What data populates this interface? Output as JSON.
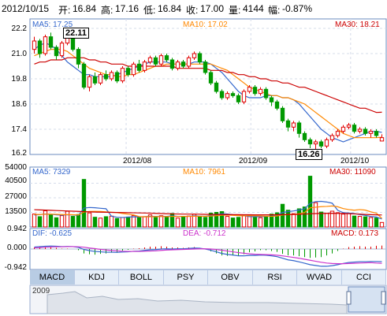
{
  "header": {
    "date": "2012/10/15",
    "open_label": "开:",
    "open": "16.84",
    "high_label": "高:",
    "high": "17.16",
    "low_label": "低:",
    "low": "16.84",
    "close_label": "收:",
    "close": "17.00",
    "volume_label": "量:",
    "volume": "4144",
    "change_label": "幅:",
    "change": "-0.87%"
  },
  "price_panel": {
    "ma5_label": "MA5: 17.25",
    "ma10_label": "MA10: 17.02",
    "ma30_label": "MA30: 18.21",
    "high_callout": "22.11",
    "low_callout": "16.26",
    "y_ticks": [
      "22.2",
      "21.0",
      "19.8",
      "18.6",
      "17.4",
      "16.2"
    ],
    "x_ticks": [
      "2012/08",
      "2012/09",
      "2012/10"
    ]
  },
  "volume_panel": {
    "ma5_label": "MA5: 7329",
    "ma10_label": "MA10: 7961",
    "ma30_label": "MA30: 11090",
    "y_ticks": [
      "54000",
      "40500",
      "27000",
      "13500"
    ]
  },
  "macd_panel": {
    "dif_label": "DIF: -0.625",
    "dea_label": "DEA: -0.712",
    "macd_label": "MACD: 0.173",
    "y_ticks": [
      "0.942",
      "0.000",
      "-0.942"
    ]
  },
  "tabs": [
    "MACD",
    "KDJ",
    "BOLL",
    "PSY",
    "OBV",
    "RSI",
    "WVAD",
    "CCI"
  ],
  "overview": {
    "year_label": "2009"
  },
  "colors": {
    "up": "#e00000",
    "down": "#009900",
    "ma5": "#3366cc",
    "ma10": "#ff8800",
    "ma30": "#cc0000",
    "dif": "#3366cc",
    "dea": "#cc33cc"
  },
  "chart_data": [
    {
      "type": "candlestick",
      "title": "",
      "xlabel": "",
      "ylabel": "",
      "ylim": [
        16.2,
        22.2
      ],
      "x_ticks": [
        "2012/08",
        "2012/09",
        "2012/10"
      ],
      "series": [
        {
          "name": "MA5",
          "values": [
            21.2,
            21.4,
            21.5,
            21.4,
            21.2,
            20.9,
            20.6,
            20.4,
            20.2,
            20.0,
            20.0,
            19.9,
            19.9,
            19.9,
            19.9,
            20.0,
            20.1,
            20.2,
            20.3,
            20.4,
            20.5,
            20.6,
            20.6,
            20.6,
            20.6,
            20.5,
            20.5,
            20.5,
            20.5,
            20.6,
            20.6,
            20.6,
            20.5,
            20.3,
            20.1,
            19.8,
            19.5,
            19.2,
            19.0,
            18.9,
            18.9,
            18.9,
            19.0,
            19.0,
            19.0,
            18.9,
            18.9,
            18.8,
            18.6,
            18.3,
            18.0,
            17.7,
            17.4,
            17.2,
            17.0,
            16.9,
            16.8,
            16.9,
            17.0,
            17.1,
            17.2,
            17.3,
            17.3,
            17.25
          ]
        },
        {
          "name": "MA10",
          "values": [
            20.9,
            21.0,
            21.1,
            21.2,
            21.2,
            21.2,
            21.1,
            20.9,
            20.7,
            20.5,
            20.3,
            20.2,
            20.1,
            20.0,
            20.0,
            19.9,
            19.9,
            20.0,
            20.0,
            20.1,
            20.2,
            20.3,
            20.4,
            20.4,
            20.5,
            20.5,
            20.5,
            20.5,
            20.5,
            20.5,
            20.5,
            20.5,
            20.5,
            20.4,
            20.3,
            20.2,
            20.0,
            19.8,
            19.6,
            19.4,
            19.3,
            19.2,
            19.1,
            19.0,
            19.0,
            18.9,
            18.9,
            18.8,
            18.7,
            18.6,
            18.4,
            18.2,
            18.0,
            17.8,
            17.6,
            17.4,
            17.2,
            17.1,
            17.0,
            17.0,
            17.0,
            17.0,
            17.0,
            17.02
          ]
        },
        {
          "name": "MA30",
          "values": [
            20.5,
            20.6,
            20.6,
            20.7,
            20.7,
            20.7,
            20.8,
            20.8,
            20.8,
            20.8,
            20.7,
            20.7,
            20.6,
            20.6,
            20.5,
            20.5,
            20.5,
            20.4,
            20.4,
            20.4,
            20.4,
            20.4,
            20.4,
            20.4,
            20.4,
            20.4,
            20.3,
            20.3,
            20.3,
            20.3,
            20.3,
            20.3,
            20.2,
            20.2,
            20.2,
            20.1,
            20.1,
            20.0,
            20.0,
            19.9,
            19.9,
            19.8,
            19.8,
            19.7,
            19.7,
            19.6,
            19.6,
            19.5,
            19.4,
            19.4,
            19.3,
            19.2,
            19.1,
            19.0,
            18.9,
            18.8,
            18.7,
            18.6,
            18.5,
            18.4,
            18.4,
            18.3,
            18.2,
            18.21
          ]
        }
      ],
      "candles": [
        [
          21.2,
          21.6,
          21.8,
          21.0
        ],
        [
          21.6,
          21.0,
          21.7,
          20.8
        ],
        [
          21.0,
          21.8,
          21.9,
          20.9
        ],
        [
          21.8,
          21.3,
          22.0,
          21.2
        ],
        [
          21.3,
          20.9,
          21.4,
          20.7
        ],
        [
          20.9,
          21.5,
          21.6,
          20.8
        ],
        [
          21.5,
          22.0,
          22.11,
          21.4
        ],
        [
          22.0,
          21.2,
          22.05,
          21.1
        ],
        [
          21.2,
          20.5,
          21.3,
          20.3
        ],
        [
          20.5,
          19.4,
          20.6,
          19.3
        ],
        [
          19.4,
          19.9,
          20.0,
          19.2
        ],
        [
          19.9,
          19.6,
          20.1,
          19.5
        ],
        [
          19.6,
          20.0,
          20.1,
          19.5
        ],
        [
          20.0,
          19.8,
          20.2,
          19.7
        ],
        [
          19.8,
          20.1,
          20.2,
          19.7
        ],
        [
          20.1,
          19.7,
          20.2,
          19.6
        ],
        [
          19.7,
          20.3,
          20.4,
          19.6
        ],
        [
          20.3,
          20.0,
          20.4,
          19.9
        ],
        [
          20.0,
          20.5,
          20.6,
          19.9
        ],
        [
          20.5,
          20.2,
          20.7,
          20.1
        ],
        [
          20.2,
          20.6,
          20.7,
          20.1
        ],
        [
          20.6,
          20.8,
          20.9,
          20.5
        ],
        [
          20.8,
          20.5,
          20.9,
          20.4
        ],
        [
          20.5,
          20.9,
          21.0,
          20.4
        ],
        [
          20.9,
          20.7,
          21.0,
          20.6
        ],
        [
          20.7,
          20.3,
          20.8,
          20.2
        ],
        [
          20.3,
          20.6,
          20.7,
          20.2
        ],
        [
          20.6,
          20.4,
          20.7,
          20.3
        ],
        [
          20.4,
          20.8,
          20.9,
          20.3
        ],
        [
          20.8,
          21.0,
          21.1,
          20.7
        ],
        [
          21.0,
          20.6,
          21.1,
          20.5
        ],
        [
          20.6,
          20.1,
          20.7,
          20.0
        ],
        [
          20.1,
          19.6,
          20.2,
          19.5
        ],
        [
          19.6,
          19.2,
          19.7,
          19.1
        ],
        [
          19.2,
          18.9,
          19.3,
          18.8
        ],
        [
          18.9,
          19.1,
          19.2,
          18.8
        ],
        [
          19.1,
          19.0,
          19.2,
          18.9
        ],
        [
          19.0,
          18.7,
          19.1,
          18.6
        ],
        [
          18.7,
          19.2,
          19.3,
          18.6
        ],
        [
          19.2,
          19.4,
          19.5,
          19.1
        ],
        [
          19.4,
          19.1,
          19.5,
          19.0
        ],
        [
          19.1,
          19.3,
          19.4,
          19.0
        ],
        [
          19.3,
          18.9,
          19.4,
          18.8
        ],
        [
          18.9,
          18.7,
          19.0,
          18.5
        ],
        [
          18.7,
          18.4,
          18.8,
          18.3
        ],
        [
          18.4,
          17.8,
          18.5,
          17.7
        ],
        [
          17.8,
          17.5,
          17.9,
          17.3
        ],
        [
          17.5,
          17.7,
          17.8,
          17.3
        ],
        [
          17.7,
          17.2,
          17.8,
          17.0
        ],
        [
          17.2,
          16.9,
          17.3,
          16.8
        ],
        [
          16.9,
          16.7,
          17.0,
          16.5
        ],
        [
          16.7,
          16.8,
          16.9,
          16.26
        ],
        [
          16.8,
          16.6,
          16.9,
          16.5
        ],
        [
          16.6,
          16.9,
          17.0,
          16.5
        ],
        [
          16.9,
          17.1,
          17.2,
          16.8
        ],
        [
          17.1,
          17.3,
          17.4,
          17.0
        ],
        [
          17.3,
          17.5,
          17.6,
          17.2
        ],
        [
          17.5,
          17.6,
          17.7,
          17.4
        ],
        [
          17.6,
          17.3,
          17.7,
          17.2
        ],
        [
          17.3,
          17.4,
          17.5,
          17.2
        ],
        [
          17.4,
          17.2,
          17.5,
          17.1
        ],
        [
          17.2,
          17.3,
          17.4,
          17.0
        ],
        [
          17.3,
          17.1,
          17.4,
          17.0
        ],
        [
          16.84,
          17.0,
          17.16,
          16.84
        ]
      ]
    },
    {
      "type": "bar",
      "title": "",
      "ylim": [
        0,
        54000
      ],
      "values": [
        12000,
        9500,
        15000,
        11000,
        8500,
        10500,
        14500,
        9800,
        11500,
        44000,
        13000,
        9000,
        8200,
        9500,
        10000,
        7800,
        8800,
        9200,
        10500,
        9000,
        9600,
        11200,
        8700,
        10400,
        9100,
        12500,
        8200,
        9300,
        10100,
        11800,
        9700,
        8900,
        12800,
        13500,
        14200,
        9800,
        8300,
        8900,
        10200,
        11100,
        9300,
        8600,
        9900,
        11900,
        13100,
        21000,
        15500,
        12300,
        16800,
        18500,
        47000,
        22500,
        13800,
        12700,
        14600,
        13200,
        11900,
        12400,
        10100,
        9800,
        9400,
        8700,
        8300,
        4144
      ],
      "series": [
        {
          "name": "MA5",
          "values": [
            11000,
            11500,
            12000,
            11800,
            11200,
            10900,
            11300,
            11100,
            10800,
            17500,
            18000,
            17800,
            17300,
            16900,
            9900,
            9000,
            8700,
            9100,
            9400,
            9300,
            9500,
            9900,
            9800,
            9900,
            9800,
            10300,
            9800,
            9800,
            9800,
            10300,
            10000,
            9900,
            10700,
            11500,
            12200,
            12000,
            11300,
            10900,
            10500,
            9600,
            9600,
            9600,
            9800,
            10100,
            10900,
            13400,
            14200,
            14800,
            15700,
            16800,
            22000,
            23500,
            23700,
            23100,
            22000,
            15400,
            13200,
            12900,
            12400,
            11500,
            10700,
            9700,
            9200,
            7329
          ]
        },
        {
          "name": "MA10",
          "values": [
            11500,
            11600,
            11800,
            11900,
            11700,
            11500,
            11400,
            11300,
            11100,
            13800,
            14300,
            14400,
            14300,
            14000,
            13600,
            13300,
            12500,
            11800,
            11200,
            9600,
            9400,
            9500,
            9600,
            9700,
            9600,
            9800,
            9700,
            9800,
            9800,
            9900,
            9900,
            9900,
            10100,
            10400,
            10800,
            11000,
            10700,
            10500,
            10300,
            10500,
            10400,
            10200,
            10000,
            9800,
            10200,
            11100,
            11400,
            11700,
            12200,
            13400,
            17700,
            18300,
            18800,
            19000,
            19400,
            18700,
            17000,
            16100,
            15500,
            16100,
            15600,
            14000,
            12700,
            7961
          ]
        },
        {
          "name": "MA30",
          "values": [
            16000,
            15800,
            15600,
            15400,
            15200,
            15000,
            14800,
            14600,
            14400,
            14200,
            14000,
            13800,
            13700,
            13600,
            13500,
            13400,
            13300,
            13200,
            13100,
            13000,
            12900,
            12800,
            12600,
            12400,
            12200,
            12100,
            12000,
            11900,
            11900,
            11900,
            11800,
            11700,
            11600,
            11600,
            11500,
            11500,
            11400,
            11400,
            11300,
            11300,
            11200,
            11200,
            11200,
            11200,
            11300,
            11400,
            11500,
            11600,
            11700,
            11900,
            12200,
            12400,
            12500,
            12600,
            12700,
            12600,
            12500,
            12300,
            12100,
            11900,
            11600,
            11400,
            11200,
            11090
          ]
        }
      ]
    },
    {
      "type": "line",
      "title": "",
      "ylim": [
        -0.942,
        0.942
      ],
      "series": [
        {
          "name": "DIF",
          "values": [
            0.1,
            0.12,
            0.14,
            0.15,
            0.14,
            0.12,
            0.13,
            0.12,
            0.08,
            -0.02,
            -0.08,
            -0.12,
            -0.14,
            -0.16,
            -0.16,
            -0.17,
            -0.15,
            -0.14,
            -0.11,
            -0.1,
            -0.07,
            -0.04,
            -0.03,
            0.0,
            0.01,
            0.0,
            0.01,
            0.01,
            0.03,
            0.05,
            0.04,
            0.0,
            -0.06,
            -0.14,
            -0.22,
            -0.27,
            -0.3,
            -0.34,
            -0.34,
            -0.32,
            -0.32,
            -0.3,
            -0.31,
            -0.34,
            -0.38,
            -0.46,
            -0.54,
            -0.58,
            -0.64,
            -0.71,
            -0.78,
            -0.82,
            -0.86,
            -0.86,
            -0.83,
            -0.78,
            -0.72,
            -0.67,
            -0.65,
            -0.63,
            -0.63,
            -0.62,
            -0.62,
            -0.625
          ]
        },
        {
          "name": "DEA",
          "values": [
            0.06,
            0.07,
            0.09,
            0.1,
            0.11,
            0.11,
            0.12,
            0.12,
            0.11,
            0.09,
            0.05,
            0.02,
            -0.02,
            -0.05,
            -0.07,
            -0.09,
            -0.11,
            -0.12,
            -0.12,
            -0.12,
            -0.11,
            -0.1,
            -0.09,
            -0.07,
            -0.05,
            -0.04,
            -0.03,
            -0.02,
            -0.01,
            0.0,
            0.01,
            0.01,
            0.0,
            -0.03,
            -0.06,
            -0.1,
            -0.14,
            -0.18,
            -0.21,
            -0.24,
            -0.26,
            -0.27,
            -0.28,
            -0.29,
            -0.31,
            -0.34,
            -0.38,
            -0.42,
            -0.46,
            -0.51,
            -0.56,
            -0.61,
            -0.66,
            -0.7,
            -0.72,
            -0.73,
            -0.73,
            -0.72,
            -0.71,
            -0.7,
            -0.69,
            -0.68,
            -0.7,
            -0.712
          ]
        }
      ]
    }
  ]
}
